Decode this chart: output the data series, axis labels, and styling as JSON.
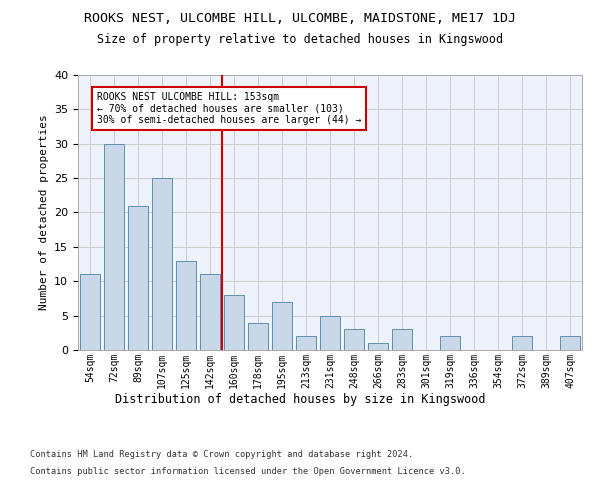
{
  "title": "ROOKS NEST, ULCOMBE HILL, ULCOMBE, MAIDSTONE, ME17 1DJ",
  "subtitle": "Size of property relative to detached houses in Kingswood",
  "xlabel": "Distribution of detached houses by size in Kingswood",
  "ylabel": "Number of detached properties",
  "categories": [
    "54sqm",
    "72sqm",
    "89sqm",
    "107sqm",
    "125sqm",
    "142sqm",
    "160sqm",
    "178sqm",
    "195sqm",
    "213sqm",
    "231sqm",
    "248sqm",
    "266sqm",
    "283sqm",
    "301sqm",
    "319sqm",
    "336sqm",
    "354sqm",
    "372sqm",
    "389sqm",
    "407sqm"
  ],
  "values": [
    11,
    30,
    21,
    25,
    13,
    11,
    8,
    4,
    7,
    2,
    5,
    3,
    1,
    3,
    0,
    2,
    0,
    0,
    2,
    0,
    2
  ],
  "bar_color": "#c8d8e8",
  "bar_edge_color": "#6090b0",
  "vline_x_index": 6,
  "vline_color": "#cc0000",
  "annotation_line1": "ROOKS NEST ULCOMBE HILL: 153sqm",
  "annotation_line2": "← 70% of detached houses are smaller (103)",
  "annotation_line3": "30% of semi-detached houses are larger (44) →",
  "annotation_box_color": "#cc0000",
  "ylim": [
    0,
    40
  ],
  "yticks": [
    0,
    5,
    10,
    15,
    20,
    25,
    30,
    35,
    40
  ],
  "grid_color": "#cccccc",
  "background_color": "#eef2fa",
  "footer_line1": "Contains HM Land Registry data © Crown copyright and database right 2024.",
  "footer_line2": "Contains public sector information licensed under the Open Government Licence v3.0."
}
